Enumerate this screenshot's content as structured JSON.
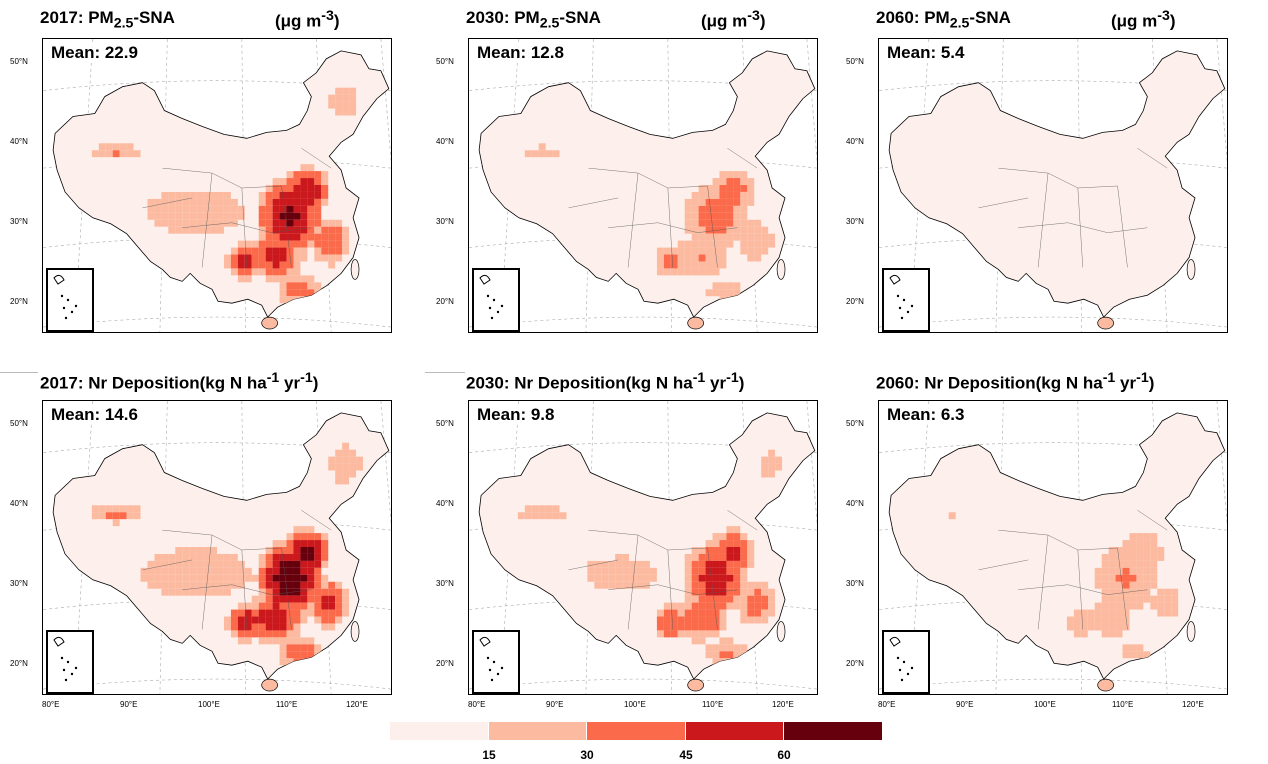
{
  "panels": [
    {
      "id": "p1",
      "title": "2017: PM",
      "sub": "2.5",
      "suffix": "-SNA",
      "unit_main": "(μg m",
      "unit_sup": "-3",
      "unit_end": ")",
      "mean": "Mean: 22.9",
      "level": 0.9
    },
    {
      "id": "p2",
      "title": "2030: PM",
      "sub": "2.5",
      "suffix": "-SNA",
      "unit_main": "(μg m",
      "unit_sup": "-3",
      "unit_end": ")",
      "mean": "Mean: 12.8",
      "level": 0.55
    },
    {
      "id": "p3",
      "title": "2060: PM",
      "sub": "2.5",
      "suffix": "-SNA",
      "unit_main": "(μg m",
      "unit_sup": "-3",
      "unit_end": ")",
      "mean": "Mean: 5.4",
      "level": 0.05
    },
    {
      "id": "p4",
      "title": "2017: Nr Deposition(kg N ha",
      "sup1": "-1",
      "mid": " yr",
      "sup2": "-1",
      "end": ")",
      "mean": "Mean: 14.6",
      "level": 1.0
    },
    {
      "id": "p5",
      "title": "2030: Nr Deposition(kg N ha",
      "sup1": "-1",
      "mid": " yr",
      "sup2": "-1",
      "end": ")",
      "mean": "Mean: 9.8",
      "level": 0.75
    },
    {
      "id": "p6",
      "title": "2060: Nr Deposition(kg N ha",
      "sup1": "-1",
      "mid": " yr",
      "sup2": "-1",
      "end": ")",
      "mean": "Mean: 6.3",
      "level": 0.45
    }
  ],
  "lat_labels": [
    "50°N",
    "40°N",
    "30°N",
    "20°N"
  ],
  "lon_labels": [
    "80°E",
    "90°E",
    "100°E",
    "110°E",
    "120°E"
  ],
  "colorbar": {
    "colors": [
      "#fdf0ec",
      "#fcbba1",
      "#fb6a4a",
      "#cb181d",
      "#67000d"
    ],
    "ticks": [
      "15",
      "30",
      "45",
      "60"
    ]
  }
}
